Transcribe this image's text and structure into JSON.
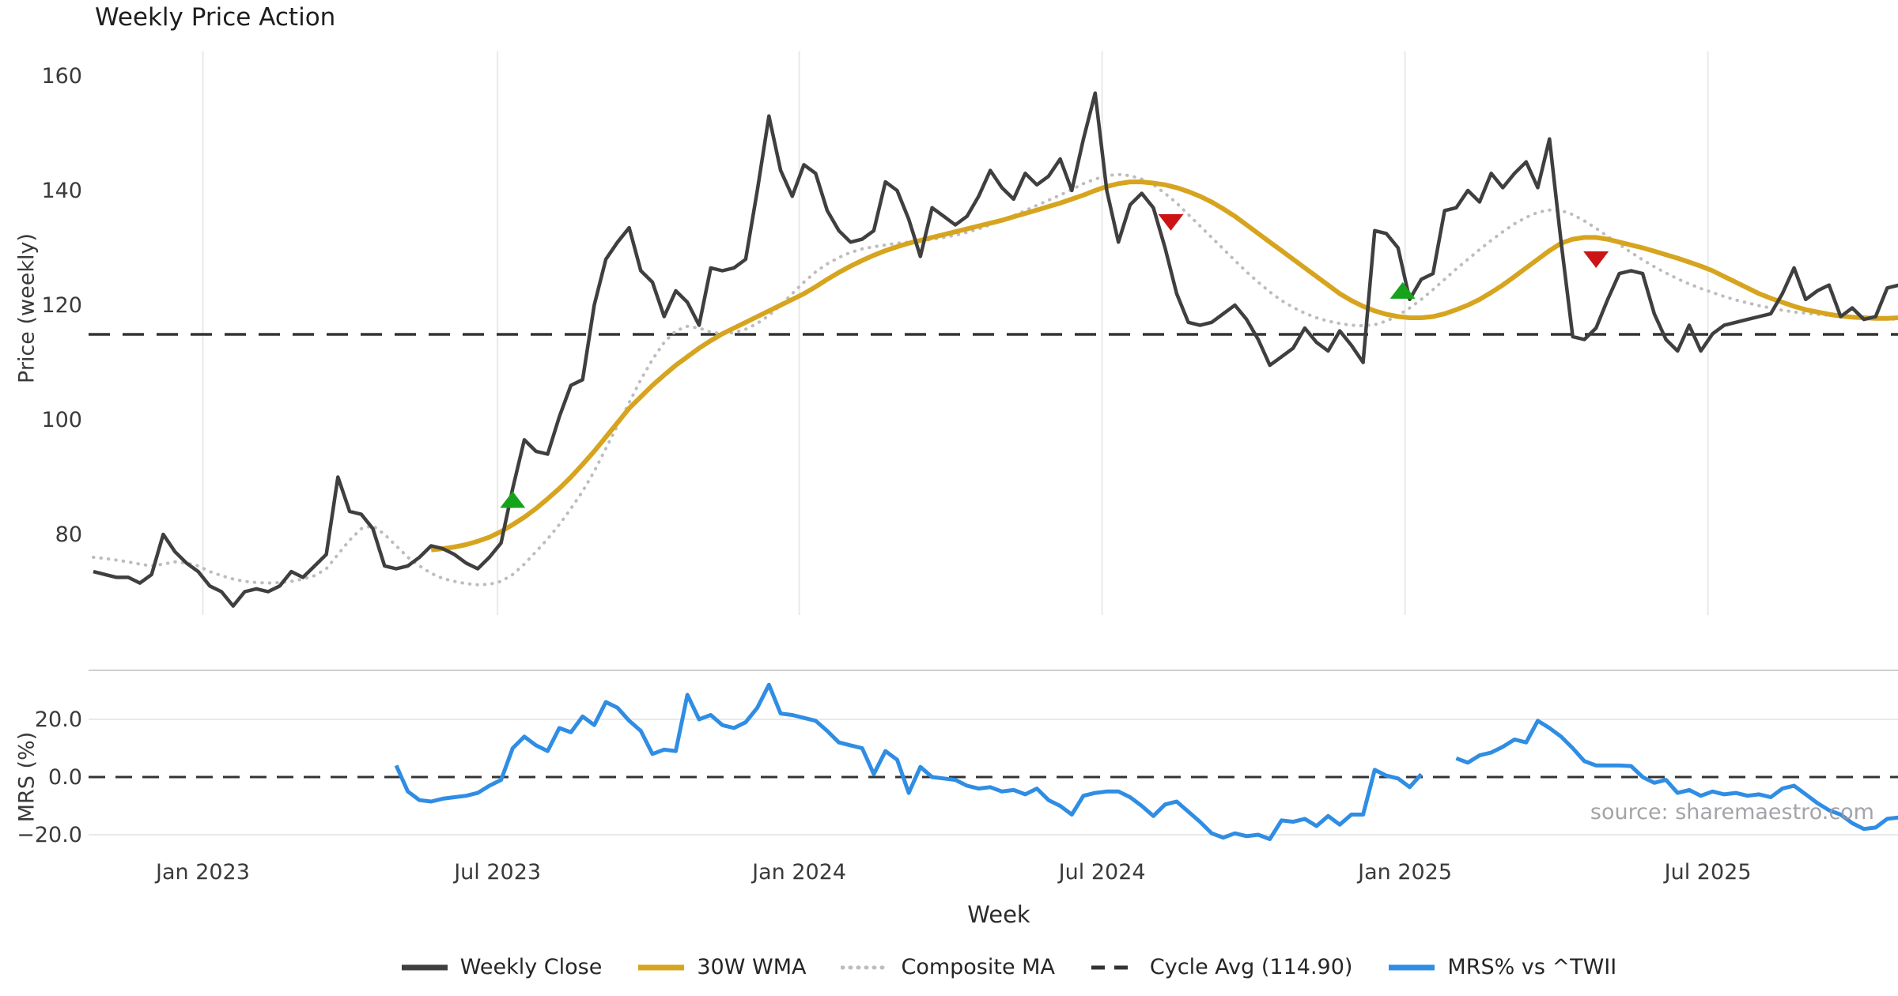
{
  "title": "Weekly Price Action",
  "source_note": "source: sharemaestro.com",
  "axes": {
    "price_label": "Price (weekly)",
    "mrs_label": "MRS (%)",
    "x_label": "Week"
  },
  "legend": {
    "close": "Weekly Close",
    "wma": "30W WMA",
    "composite": "Composite MA",
    "cycle": "Cycle Avg (114.90)",
    "mrs": "MRS% vs ^TWII"
  },
  "colors": {
    "close": "#3f3f3f",
    "wma": "#d6a41e",
    "composite": "#bdbdbd",
    "cycle": "#333333",
    "mrs": "#2f8de4",
    "buy": "#16a31b",
    "sell": "#cc1417",
    "grid": "#e9e9e9",
    "panel_border": "#d0d0d0",
    "tick_text": "#3a3a3a"
  },
  "chart_data": [
    {
      "type": "line",
      "panel": "price",
      "title": "Weekly Price Action",
      "xlabel": "Week",
      "ylabel": "Price (weekly)",
      "ylim": [
        66,
        164
      ],
      "yticks": [
        160,
        140,
        120,
        100,
        80
      ],
      "ytick_labels": [
        "160",
        "140",
        "120",
        "100",
        "80"
      ],
      "grid": "vertical-only",
      "xticks_week_index": [
        9.4,
        34.7,
        60.6,
        86.6,
        112.6,
        138.6
      ],
      "xtick_labels": [
        "Jan 2023",
        "Jul 2023",
        "Jan 2024",
        "Jul 2024",
        "Jan 2025",
        "Jul 2025"
      ],
      "cycle_avg": 114.9,
      "series": [
        {
          "name": "Weekly Close",
          "start_index": 0,
          "values": [
            73.5,
            73,
            72.5,
            72.5,
            71.5,
            73,
            80,
            77,
            75,
            73.5,
            71,
            70,
            67.5,
            70,
            70.5,
            70,
            71,
            73.5,
            72.5,
            74.5,
            76.5,
            90,
            84,
            83.5,
            81,
            74.5,
            74,
            74.5,
            76,
            78,
            77.5,
            76.5,
            75,
            74,
            76,
            78.5,
            88,
            96.5,
            94.5,
            94,
            100.5,
            106,
            107,
            120,
            128,
            131,
            133.5,
            126,
            124,
            118,
            122.5,
            120.5,
            116.5,
            126.5,
            126,
            126.5,
            128,
            140,
            153,
            143.5,
            139,
            144.5,
            143,
            136.5,
            133,
            131,
            131.5,
            133,
            141.5,
            140,
            135,
            128.5,
            137,
            135.5,
            134,
            135.5,
            139,
            143.5,
            140.5,
            138.5,
            143,
            141,
            142.5,
            145.5,
            140,
            149,
            157,
            140,
            131,
            137.5,
            139.5,
            137,
            130,
            122,
            117,
            116.5,
            117,
            118.5,
            120,
            117.5,
            114,
            109.5,
            111,
            112.5,
            116,
            113.5,
            112,
            115.5,
            113,
            110,
            133,
            132.5,
            130,
            121,
            124.5,
            125.5,
            136.5,
            137,
            140,
            138,
            143,
            140.5,
            143,
            145,
            140.5,
            149,
            131,
            114.5,
            114,
            116,
            121,
            125.5,
            126,
            125.5,
            118.5,
            114,
            112,
            116.5,
            112,
            115,
            116.5,
            117,
            117.5,
            118,
            118.5,
            122,
            126.5,
            121,
            122.5,
            123.5,
            118,
            119.5,
            117.5,
            118,
            123,
            123.5
          ]
        },
        {
          "name": "30W WMA",
          "start_index": 29,
          "values": [
            77.3,
            77.5,
            77.8,
            78.2,
            78.8,
            79.5,
            80.5,
            81.7,
            83,
            84.5,
            86.2,
            88,
            90,
            92.2,
            94.5,
            97,
            99.5,
            102,
            104,
            106,
            107.8,
            109.5,
            111,
            112.5,
            113.8,
            115,
            116,
            117,
            118,
            119,
            120,
            121,
            122,
            123.2,
            124.5,
            125.7,
            126.8,
            127.8,
            128.7,
            129.5,
            130.2,
            130.8,
            131.3,
            131.8,
            132.3,
            132.8,
            133.3,
            133.8,
            134.3,
            134.8,
            135.4,
            136,
            136.6,
            137.2,
            137.8,
            138.5,
            139.2,
            140,
            140.7,
            141.2,
            141.5,
            141.5,
            141.3,
            141,
            140.5,
            139.8,
            139,
            138,
            136.8,
            135.5,
            134,
            132.5,
            131,
            129.5,
            128,
            126.5,
            125,
            123.5,
            122,
            120.8,
            119.8,
            119,
            118.4,
            118,
            117.8,
            117.8,
            118,
            118.5,
            119.2,
            120,
            121,
            122.2,
            123.5,
            125,
            126.5,
            128,
            129.5,
            130.8,
            131.5,
            131.8,
            131.8,
            131.5,
            131,
            130.5,
            130,
            129.4,
            128.8,
            128.2,
            127.5,
            126.8,
            126,
            125,
            124,
            123,
            122,
            121.2,
            120.5,
            119.8,
            119.2,
            118.8,
            118.4,
            118.1,
            117.9,
            117.8,
            117.7,
            117.7,
            117.8
          ]
        },
        {
          "name": "Composite MA",
          "start_index": 0,
          "values": [
            76,
            75.8,
            75.5,
            75.2,
            74.8,
            74.5,
            74.8,
            75.2,
            75,
            74.5,
            73.5,
            72.8,
            72.2,
            71.8,
            71.6,
            71.5,
            71.6,
            71.8,
            72.2,
            72.8,
            74,
            76.5,
            79,
            81,
            81.5,
            80,
            78,
            76,
            74.5,
            73.2,
            72.3,
            71.8,
            71.4,
            71.2,
            71.3,
            71.8,
            73,
            74.8,
            77,
            79.2,
            81.7,
            84.5,
            87.5,
            91,
            95,
            99,
            103,
            107,
            110.5,
            113.5,
            115.5,
            116.3,
            116,
            115.3,
            115,
            115.2,
            115.8,
            116.8,
            118.2,
            120,
            122,
            124,
            125.8,
            127.2,
            128.3,
            129.2,
            129.8,
            130.2,
            130.5,
            130.8,
            131,
            131.2,
            131.5,
            131.8,
            132.2,
            132.7,
            133.3,
            134,
            134.8,
            135.6,
            136.5,
            137.4,
            138.3,
            139.2,
            140.2,
            141.2,
            142,
            142.6,
            142.8,
            142.6,
            142,
            141,
            139.5,
            137.8,
            135.8,
            133.8,
            131.8,
            129.8,
            127.8,
            125.8,
            124,
            122.3,
            120.8,
            119.6,
            118.6,
            117.8,
            117.2,
            116.8,
            116.5,
            116.4,
            116.6,
            117.2,
            118.2,
            119.5,
            121,
            122.7,
            124.5,
            126.3,
            128,
            129.7,
            131.3,
            132.8,
            134.2,
            135.3,
            136.2,
            136.6,
            136.5,
            135.8,
            134.7,
            133.4,
            132,
            130.6,
            129.2,
            127.9,
            126.7,
            125.6,
            124.6,
            123.7,
            122.9,
            122.2,
            121.5,
            120.9,
            120.4,
            119.9,
            119.5,
            119.1,
            118.8,
            118.6,
            118.4,
            118.2,
            118,
            117.9,
            117.8,
            117.7,
            117.6,
            117.5
          ]
        }
      ],
      "markers": {
        "buy": [
          {
            "week_index": 36,
            "price": 86
          },
          {
            "week_index": 112.4,
            "price": 122.5
          }
        ],
        "sell": [
          {
            "week_index": 92.5,
            "price": 134.5
          },
          {
            "week_index": 129,
            "price": 128
          }
        ]
      }
    },
    {
      "type": "line",
      "panel": "mrs",
      "ylabel": "MRS (%)",
      "ylim": [
        -26,
        37
      ],
      "yticks": [
        20,
        0,
        -20
      ],
      "ytick_labels": [
        "20.0",
        "0.0",
        "−20.0"
      ],
      "zero_line": 0,
      "series": [
        {
          "name": "MRS% vs ^TWII",
          "start_index": 26,
          "values": [
            4,
            -5,
            -8,
            -8.5,
            -7.5,
            -7,
            -6.5,
            -5.5,
            -3,
            -1,
            10,
            14,
            11,
            9,
            17,
            15.5,
            21,
            18,
            26,
            24,
            19.5,
            16,
            8,
            9.5,
            9,
            28.5,
            20,
            21.5,
            18,
            17,
            19,
            24,
            32,
            22,
            21.5,
            20.5,
            19.5,
            16,
            12,
            11,
            10,
            1,
            9,
            6,
            -5.5,
            3.5,
            0,
            -0.5,
            -1,
            -3,
            -4,
            -3.5,
            -5,
            -4.5,
            -6,
            -4,
            -8,
            -10,
            -13,
            -6.5,
            -5.5,
            -5,
            -5,
            -7,
            -10,
            -13.5,
            -9.5,
            -8.5,
            -12,
            -15.5,
            -19.5,
            -21,
            -19.5,
            -20.5,
            -20,
            -21.5,
            -15,
            -15.5,
            -14.5,
            -17,
            -13.5,
            -16.5,
            -13,
            -13,
            2.5,
            0.5,
            -0.5,
            -3.5,
            1,
            null,
            null,
            6.5,
            5,
            7.5,
            8.5,
            10.5,
            13,
            12,
            19.5,
            17,
            14,
            10,
            5.5,
            4,
            4,
            4,
            3.8,
            0,
            -2,
            -1,
            -5.5,
            -4.5,
            -6.5,
            -5,
            -6,
            -5.5,
            -6.5,
            -6,
            -7,
            -4,
            -3,
            -6,
            -9,
            -11.5,
            -13,
            -16,
            -18,
            -17.5,
            -14.5,
            -14
          ]
        }
      ]
    }
  ]
}
